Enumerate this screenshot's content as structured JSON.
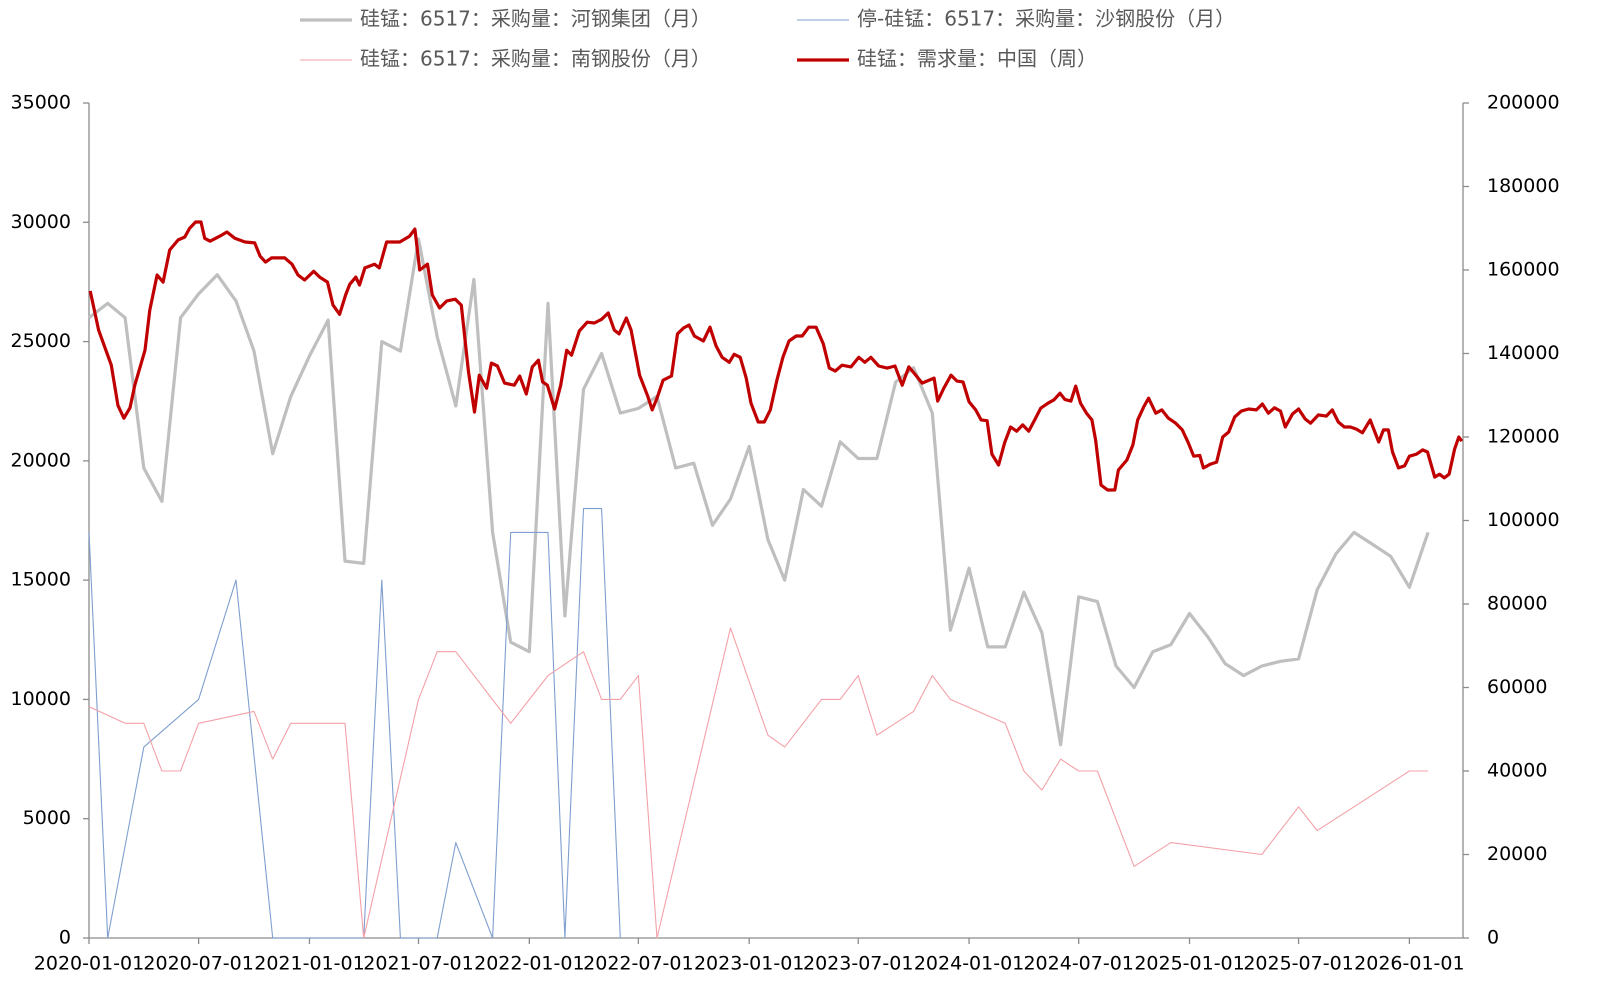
{
  "chart_data": {
    "type": "line",
    "xlim": [
      "2020-01-01",
      "2026-03-31"
    ],
    "xticks": [
      "2020-01-01",
      "2020-07-01",
      "2021-01-01",
      "2021-07-01",
      "2022-01-01",
      "2022-07-01",
      "2023-01-01",
      "2023-07-01",
      "2024-01-01",
      "2024-07-01",
      "2025-01-01",
      "2025-07-01",
      "2026-01-01"
    ],
    "ylim": [
      0,
      35000
    ],
    "yticks": [
      0,
      5000,
      10000,
      15000,
      20000,
      25000,
      30000,
      35000
    ],
    "y2lim": [
      0,
      200000
    ],
    "y2ticks": [
      0,
      20000,
      40000,
      60000,
      80000,
      100000,
      120000,
      140000,
      160000,
      180000,
      200000
    ],
    "grid": false,
    "legend": "top",
    "series": [
      {
        "name": "硅锰：6517：采购量：河钢集团（月）",
        "color": "#bfbfbf",
        "width": 3.2,
        "x": [
          "2020-01-01",
          "2020-02-01",
          "2020-03-01",
          "2020-04-01",
          "2020-05-01",
          "2020-06-01",
          "2020-07-01",
          "2020-08-01",
          "2020-09-01",
          "2020-10-01",
          "2020-11-01",
          "2020-12-01",
          "2021-01-01",
          "2021-02-01",
          "2021-03-01",
          "2021-04-01",
          "2021-05-01",
          "2021-06-01",
          "2021-07-01",
          "2021-08-01",
          "2021-09-01",
          "2021-10-01",
          "2021-11-01",
          "2021-12-01",
          "2022-01-01",
          "2022-02-01",
          "2022-03-01",
          "2022-04-01",
          "2022-05-01",
          "2022-06-01",
          "2022-07-01",
          "2022-08-01",
          "2022-09-01",
          "2022-10-01",
          "2022-11-01",
          "2022-12-01",
          "2023-01-01",
          "2023-02-01",
          "2023-03-01",
          "2023-04-01",
          "2023-05-01",
          "2023-06-01",
          "2023-07-01",
          "2023-08-01",
          "2023-09-01",
          "2023-10-01",
          "2023-11-01",
          "2023-12-01",
          "2024-01-01",
          "2024-02-01",
          "2024-03-01",
          "2024-04-01",
          "2024-05-01",
          "2024-06-01",
          "2024-07-01",
          "2024-08-01",
          "2024-09-01",
          "2024-10-01",
          "2024-11-01",
          "2024-12-01",
          "2025-01-01",
          "2025-02-01",
          "2025-03-01",
          "2025-04-01",
          "2025-05-01",
          "2025-06-01",
          "2025-07-01",
          "2025-08-01",
          "2025-09-01",
          "2025-10-01",
          "2025-11-01",
          "2025-12-01",
          "2026-01-01",
          "2026-02-01"
        ],
        "values": [
          26000,
          26600,
          26000,
          19700,
          18300,
          26000,
          27000,
          27800,
          26700,
          24600,
          20300,
          22700,
          24400,
          25900,
          15800,
          15700,
          25000,
          24600,
          29300,
          25200,
          22300,
          27600,
          17000,
          12400,
          12000,
          26600,
          13500,
          23000,
          24500,
          22000,
          22200,
          22700,
          19700,
          19900,
          17300,
          18400,
          20600,
          16700,
          15000,
          18800,
          18100,
          20800,
          20100,
          20100,
          23300,
          23900,
          22000,
          12900,
          15500,
          12200,
          12200,
          14500,
          12800,
          8100,
          14300,
          14100,
          11400,
          10500,
          12000,
          12300,
          13600,
          12600,
          11500,
          11000,
          11400,
          11600,
          11700,
          14600,
          16100,
          17000,
          16500,
          16000,
          14700,
          17000
        ]
      },
      {
        "name": "停-硅锰：6517：采购量：沙钢股份（月）",
        "color": "#7f9fcf",
        "width": 1.1,
        "x": [
          "2020-01-01",
          "2020-02-01",
          "2020-04-01",
          "2020-07-01",
          "2020-09-01",
          "2020-11-01",
          "2021-04-01",
          "2021-05-01",
          "2021-06-01",
          "2021-08-01",
          "2021-09-01",
          "2021-11-01",
          "2021-12-01",
          "2022-01-01",
          "2022-02-01",
          "2022-03-01",
          "2022-04-01",
          "2022-05-01",
          "2022-06-01"
        ],
        "values": [
          17000,
          0,
          8000,
          10000,
          15000,
          0,
          0,
          15000,
          0,
          0,
          4000,
          0,
          17000,
          17000,
          17000,
          0,
          18000,
          18000,
          0
        ]
      },
      {
        "name": "硅锰：6517：采购量：南钢股份（月）",
        "color": "#f4a0a8",
        "width": 1.1,
        "x": [
          "2020-01-01",
          "2020-03-01",
          "2020-04-01",
          "2020-05-01",
          "2020-06-01",
          "2020-07-01",
          "2020-10-01",
          "2020-11-01",
          "2020-12-01",
          "2021-03-01",
          "2021-04-01",
          "2021-07-01",
          "2021-08-01",
          "2021-09-01",
          "2021-12-01",
          "2022-02-01",
          "2022-04-01",
          "2022-05-01",
          "2022-06-01",
          "2022-07-01",
          "2022-08-01",
          "2022-12-01",
          "2023-02-01",
          "2023-03-01",
          "2023-05-01",
          "2023-06-01",
          "2023-07-01",
          "2023-08-01",
          "2023-10-01",
          "2023-11-01",
          "2023-12-01",
          "2024-03-01",
          "2024-04-01",
          "2024-05-01",
          "2024-06-01",
          "2024-07-01",
          "2024-08-01",
          "2024-10-01",
          "2024-12-01",
          "2025-05-01",
          "2025-07-01",
          "2025-08-01",
          "2026-01-01",
          "2026-02-01"
        ],
        "values": [
          9700,
          9000,
          9000,
          7000,
          7000,
          9000,
          9500,
          7500,
          9000,
          9000,
          0,
          10000,
          12000,
          12000,
          9000,
          11000,
          12000,
          10000,
          10000,
          11000,
          0,
          13000,
          8500,
          8000,
          10000,
          10000,
          11000,
          8500,
          9500,
          11000,
          10000,
          9000,
          7000,
          6200,
          7500,
          7000,
          7000,
          3000,
          4000,
          3500,
          5500,
          4500,
          7000,
          7000
        ]
      },
      {
        "name": "硅锰：需求量：中国（周）",
        "color": "#c00000",
        "width": 3.2,
        "axis": "y2",
        "x": [
          "2020-01-03",
          "2020-01-17",
          "2020-02-07",
          "2020-02-18",
          "2020-02-28",
          "2020-03-09",
          "2020-03-17",
          "2020-04-03",
          "2020-04-11",
          "2020-04-23",
          "2020-05-03",
          "2020-05-14",
          "2020-05-28",
          "2020-06-08",
          "2020-06-16",
          "2020-06-26",
          "2020-07-05",
          "2020-07-11",
          "2020-07-20",
          "2020-08-05",
          "2020-08-17",
          "2020-08-30",
          "2020-09-16",
          "2020-10-02",
          "2020-10-11",
          "2020-10-20",
          "2020-10-30",
          "2020-11-21",
          "2020-12-03",
          "2020-12-13",
          "2020-12-24",
          "2021-01-08",
          "2021-01-18",
          "2021-01-31",
          "2021-02-09",
          "2021-02-20",
          "2021-03-02",
          "2021-03-09",
          "2021-03-19",
          "2021-03-25",
          "2021-04-03",
          "2021-04-19",
          "2021-04-27",
          "2021-05-09",
          "2021-05-31",
          "2021-06-16",
          "2021-06-25",
          "2021-07-03",
          "2021-07-16",
          "2021-07-24",
          "2021-08-05",
          "2021-08-17",
          "2021-08-31",
          "2021-09-10",
          "2021-09-22",
          "2021-10-02",
          "2021-10-10",
          "2021-10-22",
          "2021-10-30",
          "2021-11-09",
          "2021-11-21",
          "2021-12-07",
          "2021-12-16",
          "2021-12-27",
          "2022-01-06",
          "2022-01-16",
          "2022-01-23",
          "2022-01-31",
          "2022-02-12",
          "2022-02-22",
          "2022-03-04",
          "2022-03-12",
          "2022-03-25",
          "2022-04-07",
          "2022-04-19",
          "2022-05-01",
          "2022-05-12",
          "2022-05-22",
          "2022-05-30",
          "2022-06-11",
          "2022-06-19",
          "2022-07-03",
          "2022-07-16",
          "2022-07-24",
          "2022-08-01",
          "2022-08-11",
          "2022-08-25",
          "2022-09-04",
          "2022-09-14",
          "2022-09-23",
          "2022-10-02",
          "2022-10-17",
          "2022-10-28",
          "2022-11-07",
          "2022-11-17",
          "2022-11-29",
          "2022-12-07",
          "2022-12-17",
          "2022-12-27",
          "2023-01-04",
          "2023-01-16",
          "2023-01-26",
          "2023-02-05",
          "2023-02-16",
          "2023-02-26",
          "2023-03-08",
          "2023-03-20",
          "2023-03-30",
          "2023-04-10",
          "2023-04-22",
          "2023-05-04",
          "2023-05-14",
          "2023-05-24",
          "2023-06-04",
          "2023-06-19",
          "2023-07-02",
          "2023-07-12",
          "2023-07-22",
          "2023-08-04",
          "2023-08-18",
          "2023-08-31",
          "2023-09-12",
          "2023-09-23",
          "2023-10-03",
          "2023-10-15",
          "2023-11-04",
          "2023-11-10",
          "2023-11-20",
          "2023-12-02",
          "2023-12-12",
          "2023-12-22",
          "2024-01-01",
          "2024-01-12",
          "2024-01-21",
          "2024-01-31",
          "2024-02-08",
          "2024-02-19",
          "2024-02-29",
          "2024-03-10",
          "2024-03-20",
          "2024-03-30",
          "2024-04-09",
          "2024-04-19",
          "2024-04-29",
          "2024-05-11",
          "2024-05-21",
          "2024-05-31",
          "2024-06-08",
          "2024-06-18",
          "2024-06-26",
          "2024-07-04",
          "2024-07-14",
          "2024-07-23",
          "2024-07-29",
          "2024-08-07",
          "2024-08-18",
          "2024-08-30",
          "2024-09-05",
          "2024-09-19",
          "2024-09-29",
          "2024-10-07",
          "2024-10-17",
          "2024-10-25",
          "2024-11-06",
          "2024-11-16",
          "2024-11-27",
          "2024-12-09",
          "2024-12-20",
          "2024-12-30",
          "2025-01-08",
          "2025-01-18",
          "2025-01-24",
          "2025-02-05",
          "2025-02-15",
          "2025-02-25",
          "2025-03-07",
          "2025-03-17",
          "2025-03-28",
          "2025-04-09",
          "2025-04-22",
          "2025-05-02",
          "2025-05-12",
          "2025-05-22",
          "2025-06-01",
          "2025-06-09",
          "2025-06-21",
          "2025-07-01",
          "2025-07-12",
          "2025-07-21",
          "2025-08-03",
          "2025-08-16",
          "2025-08-26",
          "2025-09-05",
          "2025-09-15",
          "2025-09-25",
          "2025-10-05",
          "2025-10-15",
          "2025-10-28",
          "2025-11-11",
          "2025-11-19",
          "2025-11-27",
          "2025-12-04",
          "2025-12-14",
          "2025-12-24",
          "2026-01-01",
          "2026-01-13",
          "2026-01-23",
          "2026-01-31",
          "2026-02-12",
          "2026-02-20",
          "2026-02-28",
          "2026-03-08",
          "2026-03-17",
          "2026-03-24",
          "2026-03-29"
        ],
        "values": [
          155000,
          145600,
          137200,
          127600,
          124500,
          127000,
          132400,
          140800,
          150400,
          158800,
          157100,
          164800,
          167200,
          167900,
          170000,
          171500,
          171500,
          167600,
          166900,
          168100,
          169100,
          167600,
          166700,
          166500,
          163300,
          161900,
          162900,
          162900,
          161400,
          158800,
          157600,
          159700,
          158300,
          157100,
          151600,
          149400,
          154000,
          156600,
          158300,
          156400,
          160500,
          161400,
          160500,
          166700,
          166700,
          168100,
          169800,
          160000,
          161400,
          154000,
          150900,
          152600,
          153000,
          151600,
          135600,
          126000,
          134800,
          131700,
          137700,
          137000,
          132900,
          132400,
          134600,
          130300,
          136800,
          138400,
          133200,
          132400,
          126700,
          132400,
          140800,
          139600,
          145400,
          147500,
          147300,
          148200,
          149700,
          145600,
          144700,
          148500,
          145600,
          134800,
          130000,
          126500,
          129300,
          133600,
          134600,
          144700,
          146100,
          146800,
          144200,
          143000,
          146300,
          141800,
          139100,
          137900,
          139800,
          139100,
          134100,
          128100,
          123600,
          123600,
          126500,
          133600,
          139100,
          143000,
          144200,
          144200,
          146300,
          146300,
          142300,
          136500,
          135800,
          137200,
          136800,
          139100,
          137900,
          139100,
          137000,
          136500,
          137000,
          132400,
          136800,
          135100,
          132900,
          134100,
          128600,
          131700,
          134800,
          133400,
          133200,
          128400,
          126500,
          124100,
          123900,
          115900,
          113300,
          118600,
          122400,
          121400,
          122900,
          121400,
          124100,
          126900,
          128100,
          128900,
          130500,
          129000,
          128600,
          132200,
          128100,
          125700,
          124100,
          119300,
          108500,
          107300,
          107300,
          112100,
          114500,
          118100,
          124100,
          127200,
          129300,
          125700,
          126500,
          124500,
          123300,
          121700,
          118600,
          115400,
          115600,
          112600,
          113500,
          114000,
          120000,
          121200,
          124800,
          126200,
          126700,
          126500,
          127900,
          125700,
          127000,
          126200,
          122400,
          125500,
          126700,
          124300,
          123300,
          125300,
          125000,
          126500,
          123600,
          122400,
          122400,
          121900,
          121000,
          124100,
          118800,
          121700,
          121700,
          116400,
          112600,
          113100,
          115400,
          115900,
          116900,
          116400,
          110400,
          111100,
          110200,
          111100,
          117100,
          120000,
          119000
        ]
      }
    ]
  }
}
